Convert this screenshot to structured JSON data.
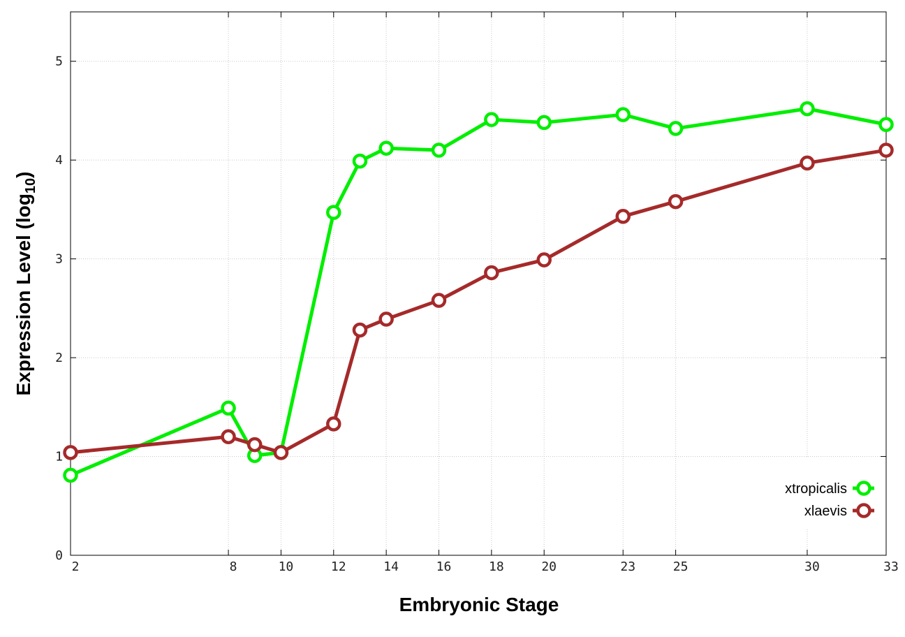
{
  "chart_data": {
    "type": "line",
    "xlabel": "Embryonic Stage",
    "ylabel_main": "Expression Level (log",
    "ylabel_sub": "10",
    "ylabel_close": ")",
    "xlim": [
      2,
      33
    ],
    "ylim": [
      0,
      5.5
    ],
    "x_ticks": [
      2,
      8,
      10,
      12,
      14,
      16,
      18,
      20,
      23,
      25,
      30,
      33
    ],
    "x_tick_labels": [
      "2",
      "8",
      "10",
      "12",
      "14",
      "16",
      "18",
      "20",
      "23",
      "25",
      "30",
      "33"
    ],
    "y_ticks": [
      0,
      1,
      2,
      3,
      4,
      5
    ],
    "y_tick_labels": [
      "0",
      "1",
      "2",
      "3",
      "4",
      "5"
    ],
    "grid": true,
    "legend_position": "bottom-right",
    "series": [
      {
        "name": "xtropicalis",
        "color": "#00ee00",
        "x": [
          2,
          8,
          9,
          10,
          12,
          13,
          14,
          16,
          18,
          20,
          23,
          25,
          30,
          33
        ],
        "y": [
          0.81,
          1.49,
          1.01,
          1.04,
          3.47,
          3.99,
          4.12,
          4.1,
          4.41,
          4.38,
          4.46,
          4.32,
          4.52,
          4.36
        ]
      },
      {
        "name": "xlaevis",
        "color": "#a52a2a",
        "x": [
          2,
          8,
          9,
          10,
          12,
          13,
          14,
          16,
          18,
          20,
          23,
          25,
          30,
          33
        ],
        "y": [
          1.04,
          1.2,
          1.12,
          1.04,
          1.33,
          2.28,
          2.39,
          2.58,
          2.86,
          2.99,
          3.43,
          3.58,
          3.97,
          4.1
        ]
      }
    ]
  }
}
